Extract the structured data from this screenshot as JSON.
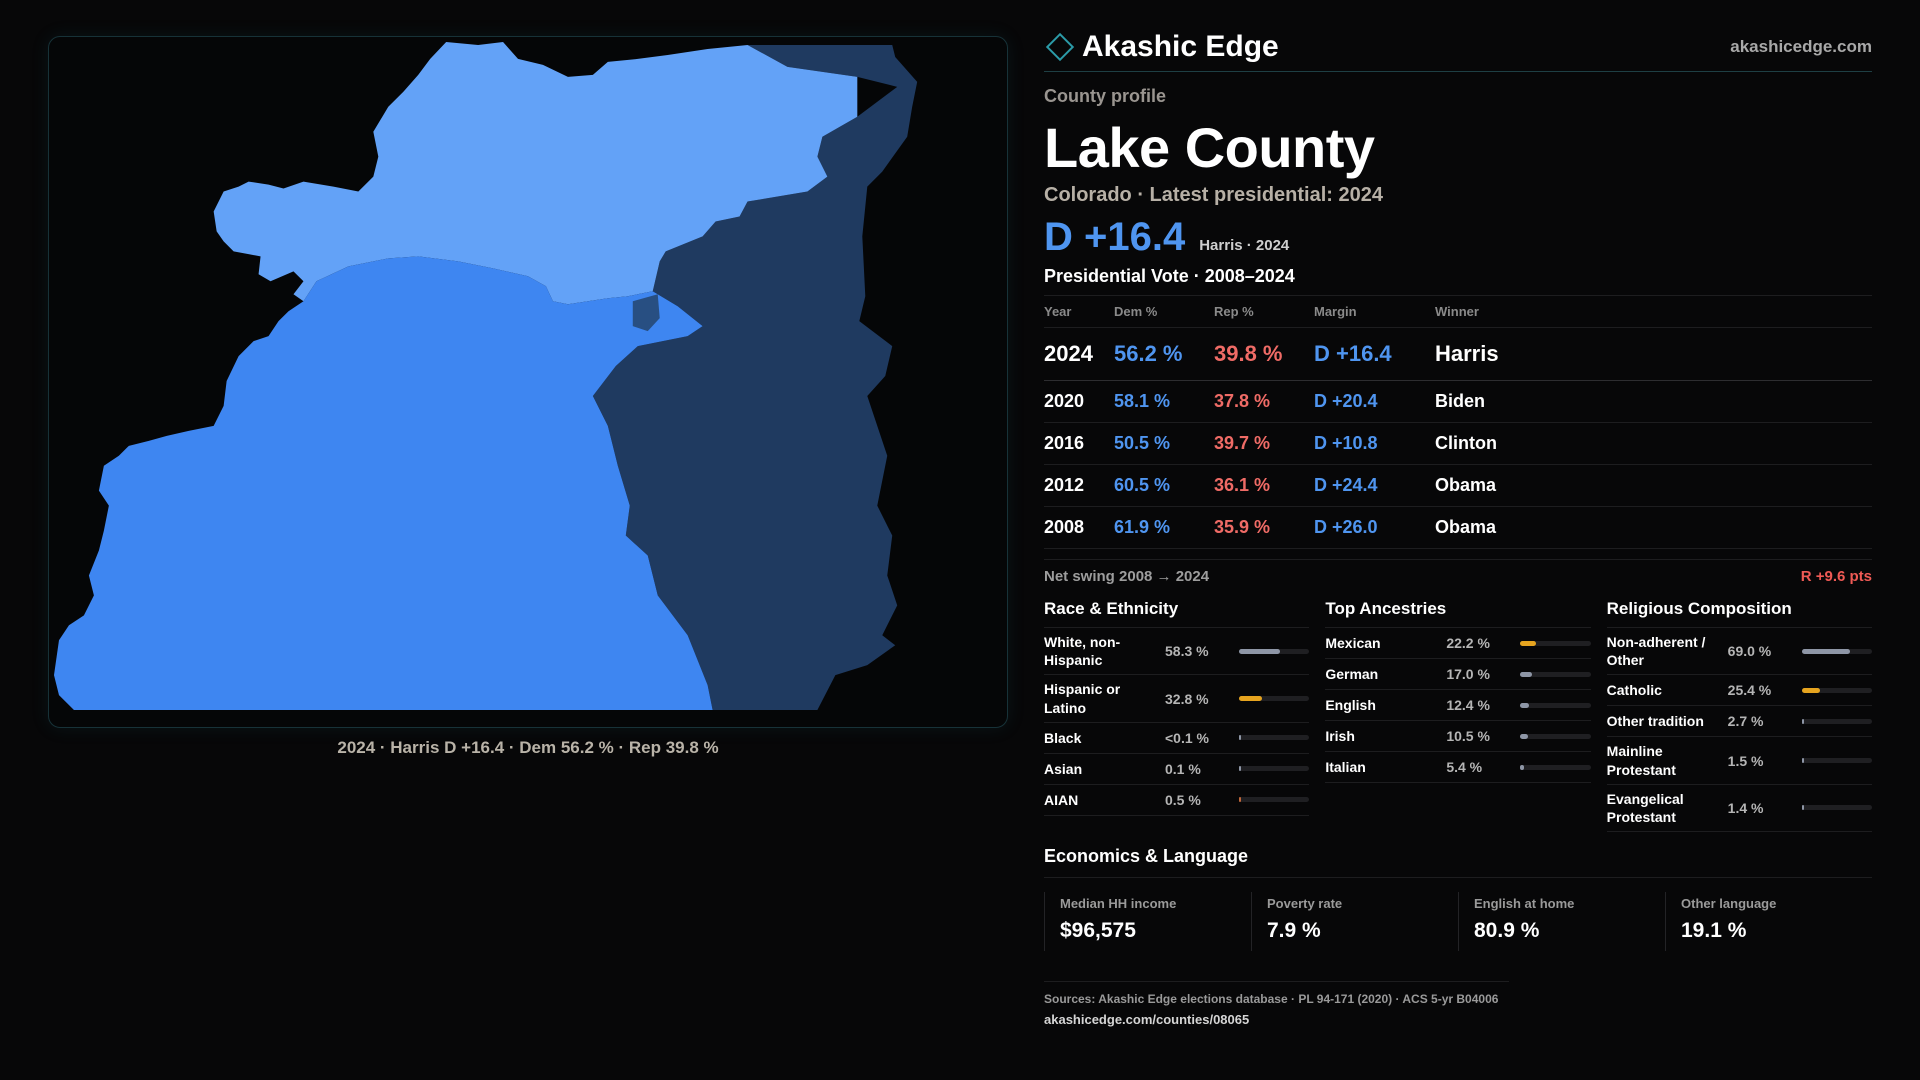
{
  "map": {
    "caption": "2024 · Harris D +16.4 · Dem 56.2 % · Rep 39.8 %",
    "colors": {
      "light_blue": "#63a2f7",
      "mid_blue": "#3e86f1",
      "dark_navy": "#1f3a60"
    }
  },
  "brand": {
    "name": "Akashic Edge",
    "url": "akashicedge.com",
    "accent": "#2b9ba8"
  },
  "profile": {
    "eyebrow": "County profile",
    "county": "Lake County",
    "subline": "Colorado · Latest presidential: 2024",
    "margin": "D +16.4",
    "margin_note": "Harris · 2024"
  },
  "presidential": {
    "title": "Presidential Vote · 2008–2024",
    "headers": {
      "year": "Year",
      "dem": "Dem %",
      "rep": "Rep %",
      "margin": "Margin",
      "winner": "Winner"
    },
    "rows": [
      {
        "year": "2024",
        "dem": "56.2 %",
        "rep": "39.8 %",
        "margin": "D +16.4",
        "winner": "Harris"
      },
      {
        "year": "2020",
        "dem": "58.1 %",
        "rep": "37.8 %",
        "margin": "D +20.4",
        "winner": "Biden"
      },
      {
        "year": "2016",
        "dem": "50.5 %",
        "rep": "39.7 %",
        "margin": "D +10.8",
        "winner": "Clinton"
      },
      {
        "year": "2012",
        "dem": "60.5 %",
        "rep": "36.1 %",
        "margin": "D +24.4",
        "winner": "Obama"
      },
      {
        "year": "2008",
        "dem": "61.9 %",
        "rep": "35.9 %",
        "margin": "D +26.0",
        "winner": "Obama"
      }
    ],
    "swing_label": "Net swing 2008 → 2024",
    "swing_value": "R +9.6 pts",
    "colors": {
      "dem": "#4f95f0",
      "rep": "#ef6b66"
    }
  },
  "race": {
    "title": "Race & Ethnicity",
    "rows": [
      {
        "label": "White, non-Hispanic",
        "value": "58.3 %",
        "fraction": 0.583,
        "color": "#8e96a6"
      },
      {
        "label": "Hispanic or Latino",
        "value": "32.8 %",
        "fraction": 0.328,
        "color": "#e6a41f"
      },
      {
        "label": "Black",
        "value": "<0.1 %",
        "fraction": 0.001,
        "color": "#8e96a6"
      },
      {
        "label": "Asian",
        "value": "0.1 %",
        "fraction": 0.001,
        "color": "#8e96a6"
      },
      {
        "label": "AIAN",
        "value": "0.5 %",
        "fraction": 0.005,
        "color": "#c0673a"
      }
    ]
  },
  "ancestry": {
    "title": "Top Ancestries",
    "rows": [
      {
        "label": "Mexican",
        "value": "22.2 %",
        "fraction": 0.222,
        "color": "#e6a41f"
      },
      {
        "label": "German",
        "value": "17.0 %",
        "fraction": 0.17,
        "color": "#8e96a6"
      },
      {
        "label": "English",
        "value": "12.4 %",
        "fraction": 0.124,
        "color": "#8e96a6"
      },
      {
        "label": "Irish",
        "value": "10.5 %",
        "fraction": 0.105,
        "color": "#8e96a6"
      },
      {
        "label": "Italian",
        "value": "5.4 %",
        "fraction": 0.054,
        "color": "#8e96a6"
      }
    ]
  },
  "religion": {
    "title": "Religious Composition",
    "rows": [
      {
        "label": "Non-adherent / Other",
        "value": "69.0 %",
        "fraction": 0.69,
        "color": "#8e96a6"
      },
      {
        "label": "Catholic",
        "value": "25.4 %",
        "fraction": 0.254,
        "color": "#e6a41f"
      },
      {
        "label": "Other tradition",
        "value": "2.7 %",
        "fraction": 0.027,
        "color": "#8e96a6"
      },
      {
        "label": "Mainline Protestant",
        "value": "1.5 %",
        "fraction": 0.015,
        "color": "#8e96a6"
      },
      {
        "label": "Evangelical Protestant",
        "value": "1.4 %",
        "fraction": 0.014,
        "color": "#8e96a6"
      }
    ]
  },
  "economics": {
    "title": "Economics & Language",
    "cells": [
      {
        "label": "Median HH income",
        "value": "$96,575"
      },
      {
        "label": "Poverty rate",
        "value": "7.9 %"
      },
      {
        "label": "English at home",
        "value": "80.9 %"
      },
      {
        "label": "Other language",
        "value": "19.1 %"
      }
    ]
  },
  "sources": {
    "line": "Sources: Akashic Edge elections database · PL 94-171 (2020) · ACS 5-yr B04006",
    "url": "akashicedge.com/counties/08065"
  }
}
